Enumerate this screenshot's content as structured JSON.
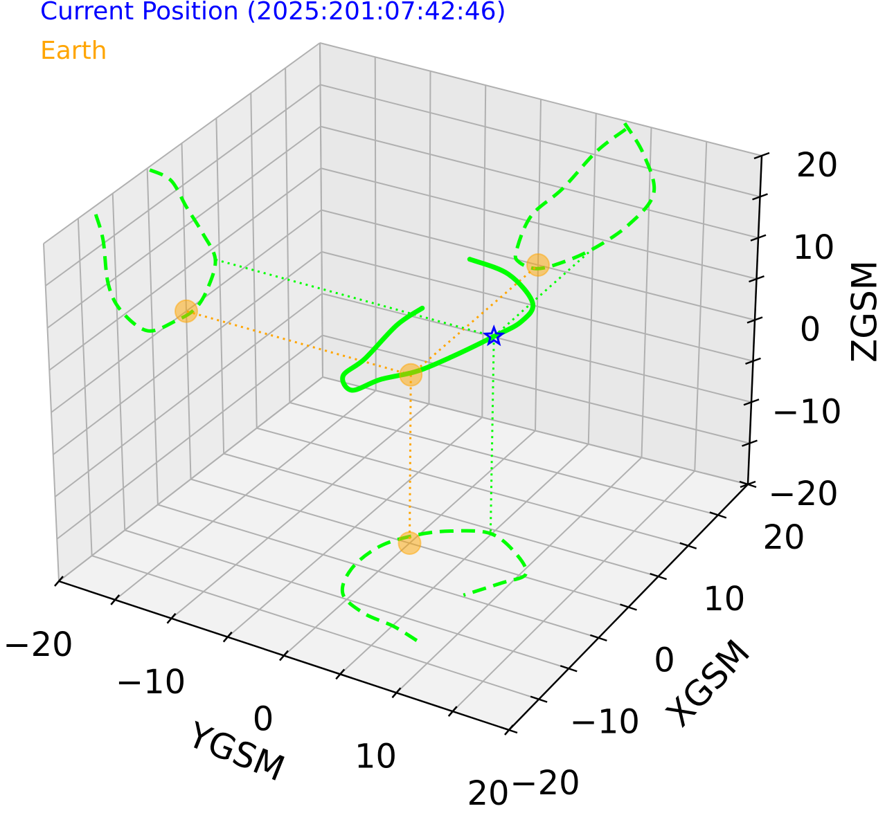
{
  "chart_data": {
    "type": "line3d",
    "xlabel": "XGSM",
    "ylabel": "YGSM",
    "zlabel": "ZGSM",
    "xlim": [
      -20,
      20
    ],
    "ylim": [
      -20,
      20
    ],
    "zlim": [
      -20,
      20
    ],
    "xticks": [
      {
        "value": -20,
        "label": "−20"
      },
      {
        "value": -10,
        "label": "−10"
      },
      0,
      10,
      20
    ],
    "yticks": [
      {
        "value": -20,
        "label": "−20"
      },
      {
        "value": -10,
        "label": "−10"
      },
      0,
      10,
      20
    ],
    "zticks": [
      {
        "value": -20,
        "label": "−20"
      },
      {
        "value": -10,
        "label": "−10"
      },
      0,
      10,
      20
    ],
    "xminorticks": [
      -15,
      -5,
      5,
      15
    ],
    "yminorticks": [
      -15,
      -5,
      5,
      15
    ],
    "zminorticks": [
      -15,
      -5,
      5,
      15
    ],
    "grid": true,
    "projections": true,
    "series": [
      {
        "color": "#00ff00",
        "x": [
          -12.5,
          -11.6,
          -11.1,
          -9.4,
          -5.7,
          -1.6,
          1.3,
          3.2,
          4.4,
          2.7,
          0.4,
          -1.7,
          -4.75
        ],
        "y": [
          7.7,
          5.1,
          2.1,
          -0.7,
          -2.0,
          -1.8,
          -0.2,
          1.9,
          4.9,
          8.2,
          10.4,
          9.35,
          7.6
        ],
        "z": [
          19,
          15.4,
          9.9,
          5.7,
          1.1,
          -0.2,
          -0.5,
          0.8,
          3.5,
          7.6,
          12.2,
          16.6,
          19.7
        ]
      },
      {
        "name": "Current Position (2025:201:07:42:46)",
        "color": "#0000ff",
        "marker": "star",
        "x": [
          4.4
        ],
        "y": [
          4.9
        ],
        "z": [
          3.5
        ]
      },
      {
        "name": "Earth",
        "color": "#ffa500",
        "marker": "circle",
        "x": [
          0
        ],
        "y": [
          0
        ],
        "z": [
          0
        ]
      }
    ]
  }
}
